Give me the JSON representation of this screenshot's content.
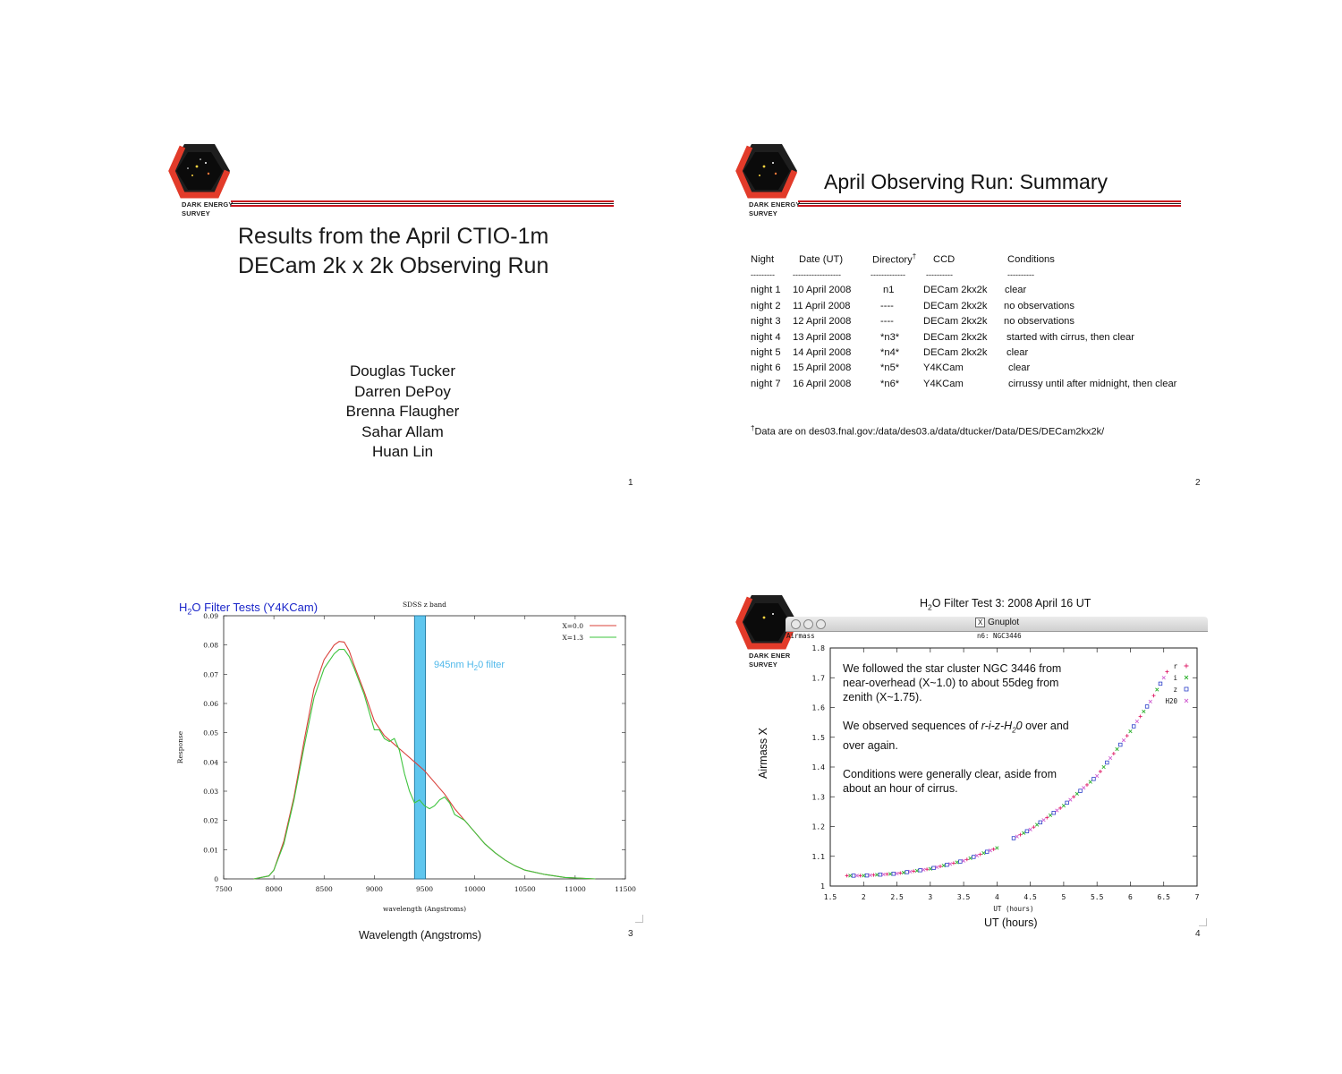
{
  "logo": {
    "line1": "DARK ENERGY",
    "line2": "SURVEY",
    "line1_slide4": "DARK ENER"
  },
  "slide1": {
    "title_line1": "Results from the April CTIO-1m",
    "title_line2": "DECam 2k x 2k Observing Run",
    "authors": [
      "Douglas Tucker",
      "Darren DePoy",
      "Brenna Flaugher",
      "Sahar Allam",
      "Huan Lin"
    ],
    "page": "1"
  },
  "slide2": {
    "title": "April Observing Run:  Summary",
    "headers": [
      "Night",
      "Date (UT)",
      "Directory",
      "CCD",
      "Conditions"
    ],
    "dagger": "†",
    "dashes": [
      "---------",
      "------------------",
      "-------------",
      "----------",
      "----------"
    ],
    "rows": [
      [
        "night 1",
        "10 April 2008",
        "n1",
        "DECam 2kx2k",
        "clear"
      ],
      [
        "night 2",
        "11 April 2008",
        "----",
        "DECam 2kx2k",
        "no observations"
      ],
      [
        "night 3",
        "12 April 2008",
        "----",
        "DECam 2kx2k",
        "no observations"
      ],
      [
        "night 4",
        "13 April 2008",
        "*n3*",
        "DECam 2kx2k",
        "started with cirrus, then clear"
      ],
      [
        "night 5",
        "14 April 2008",
        "*n4*",
        "DECam 2kx2k",
        "clear"
      ],
      [
        "night 6",
        "15 April 2008",
        "*n5*",
        "Y4KCam",
        "clear"
      ],
      [
        "night 7",
        "16 April 2008",
        "*n6*",
        "Y4KCam",
        "cirrussy until after midnight, then clear"
      ]
    ],
    "footnote": "Data are on des03.fnal.gov:/data/des03.a/data/dtucker/Data/DES/DECam2kx2k/",
    "page": "2"
  },
  "slide3": {
    "title_pre": "H",
    "title_sub": "2",
    "title_post": "O Filter Tests (Y4KCam)",
    "filter_label_pre": "945nm H",
    "filter_label_sub": "2",
    "filter_label_post": "0 filter",
    "caption": "Wavelength (Angstroms)",
    "page": "3",
    "colors": {
      "red": "#d9403a",
      "green": "#3ec43e",
      "band_fill": "#5fc6ee",
      "band_stroke": "#1c6f98",
      "label": "#4fb8ea"
    }
  },
  "slide4": {
    "title_pre": "H",
    "title_sub": "2",
    "title_post": "O Filter Test 3:  2008 April 16 UT",
    "window_title": "Gnuplot",
    "window_corner": "Airmass",
    "window_subtitle": "n6:  NGC3446",
    "note_p1": "We followed the star cluster NGC 3446 from near-overhead (X~1.0) to about 55deg from zenith (X~1.75).",
    "note_p2_pre": "We observed sequences of ",
    "note_p2_em": "r-i-z-H",
    "note_p2_sub": "2",
    "note_p2_em2": "0",
    "note_p2_post": " over and over again.",
    "note_p3": "Conditions were generally clear, aside from about an hour of cirrus.",
    "ylabel": "Airmass X",
    "xlabel_big": "UT (hours)",
    "page": "4",
    "colors": {
      "r": "#e0206a",
      "i": "#2db02d",
      "z": "#2a3ec9",
      "H20": "#d060d0"
    }
  },
  "chart_data": [
    {
      "type": "line",
      "title": "SDSS z band",
      "xlabel": "wavelength (Angstroms)",
      "ylabel": "Response",
      "xlim": [
        7500,
        11500
      ],
      "ylim": [
        0,
        0.09
      ],
      "xticks": [
        "7500",
        "8000",
        "8500",
        "9000",
        "9500",
        "10000",
        "10500",
        "11000",
        "11500"
      ],
      "yticks": [
        "0",
        "0.01",
        "0.02",
        "0.03",
        "0.04",
        "0.05",
        "0.06",
        "0.07",
        "0.08",
        "0.09"
      ],
      "legend": "top-right",
      "series": [
        {
          "name": "X=0.0",
          "color": "#d9403a",
          "x": [
            7800,
            7950,
            8000,
            8100,
            8200,
            8300,
            8400,
            8500,
            8600,
            8650,
            8700,
            8750,
            8800,
            8900,
            9000,
            9100,
            9200,
            9300,
            9400,
            9500,
            9600,
            9700,
            9800,
            9900,
            10000,
            10100,
            10200,
            10300,
            10400,
            10500,
            10700,
            10900,
            11200
          ],
          "y": [
            0,
            0.001,
            0.003,
            0.013,
            0.028,
            0.047,
            0.065,
            0.075,
            0.08,
            0.0812,
            0.081,
            0.078,
            0.073,
            0.064,
            0.054,
            0.049,
            0.046,
            0.043,
            0.04,
            0.037,
            0.033,
            0.029,
            0.024,
            0.02,
            0.016,
            0.012,
            0.009,
            0.0065,
            0.0045,
            0.003,
            0.0015,
            0.0005,
            0
          ]
        },
        {
          "name": "X=1.3",
          "color": "#3ec43e",
          "x": [
            7800,
            7950,
            8000,
            8100,
            8200,
            8300,
            8400,
            8500,
            8600,
            8650,
            8700,
            8750,
            8800,
            8900,
            9000,
            9050,
            9100,
            9150,
            9200,
            9250,
            9300,
            9350,
            9400,
            9450,
            9500,
            9550,
            9600,
            9650,
            9700,
            9750,
            9800,
            9850,
            9900,
            10000,
            10100,
            10200,
            10300,
            10400,
            10500,
            10700,
            10900,
            11200
          ],
          "y": [
            0,
            0.001,
            0.003,
            0.012,
            0.027,
            0.045,
            0.062,
            0.072,
            0.077,
            0.0785,
            0.0785,
            0.076,
            0.072,
            0.063,
            0.051,
            0.051,
            0.048,
            0.047,
            0.048,
            0.044,
            0.036,
            0.03,
            0.026,
            0.027,
            0.025,
            0.024,
            0.025,
            0.027,
            0.028,
            0.026,
            0.022,
            0.021,
            0.02,
            0.016,
            0.012,
            0.009,
            0.0065,
            0.0045,
            0.003,
            0.0015,
            0.0005,
            0
          ]
        }
      ],
      "filter_band": [
        9400,
        9510
      ]
    },
    {
      "type": "scatter",
      "xlabel": "UT (hours)",
      "ylabel": "Airmass X",
      "xlim": [
        1.5,
        7
      ],
      "ylim": [
        1,
        1.8
      ],
      "xticks": [
        "1.5",
        "2",
        "2.5",
        "3",
        "3.5",
        "4",
        "4.5",
        "5",
        "5.5",
        "6",
        "6.5",
        "7"
      ],
      "yticks": [
        "1",
        "1.1",
        "1.2",
        "1.3",
        "1.4",
        "1.5",
        "1.6",
        "1.7",
        "1.8"
      ],
      "legend": "top-right",
      "series": [
        {
          "name": "r",
          "marker": "+",
          "color": "#e0206a"
        },
        {
          "name": "i",
          "marker": "x",
          "color": "#2db02d"
        },
        {
          "name": "z",
          "marker": "square",
          "color": "#2a3ec9"
        },
        {
          "name": "H20",
          "marker": "x",
          "color": "#d060d0"
        }
      ],
      "points": {
        "x_start": 1.75,
        "x_gap_start": 4.0,
        "x_gap_end": 4.2,
        "x_end": 6.55,
        "curve_x": [
          1.75,
          2.0,
          2.5,
          3.0,
          3.5,
          4.0,
          4.2,
          4.5,
          5.0,
          5.5,
          6.0,
          6.3,
          6.55
        ],
        "curve_y": [
          1.035,
          1.035,
          1.042,
          1.058,
          1.085,
          1.128,
          1.155,
          1.19,
          1.27,
          1.37,
          1.52,
          1.62,
          1.72
        ]
      }
    }
  ]
}
